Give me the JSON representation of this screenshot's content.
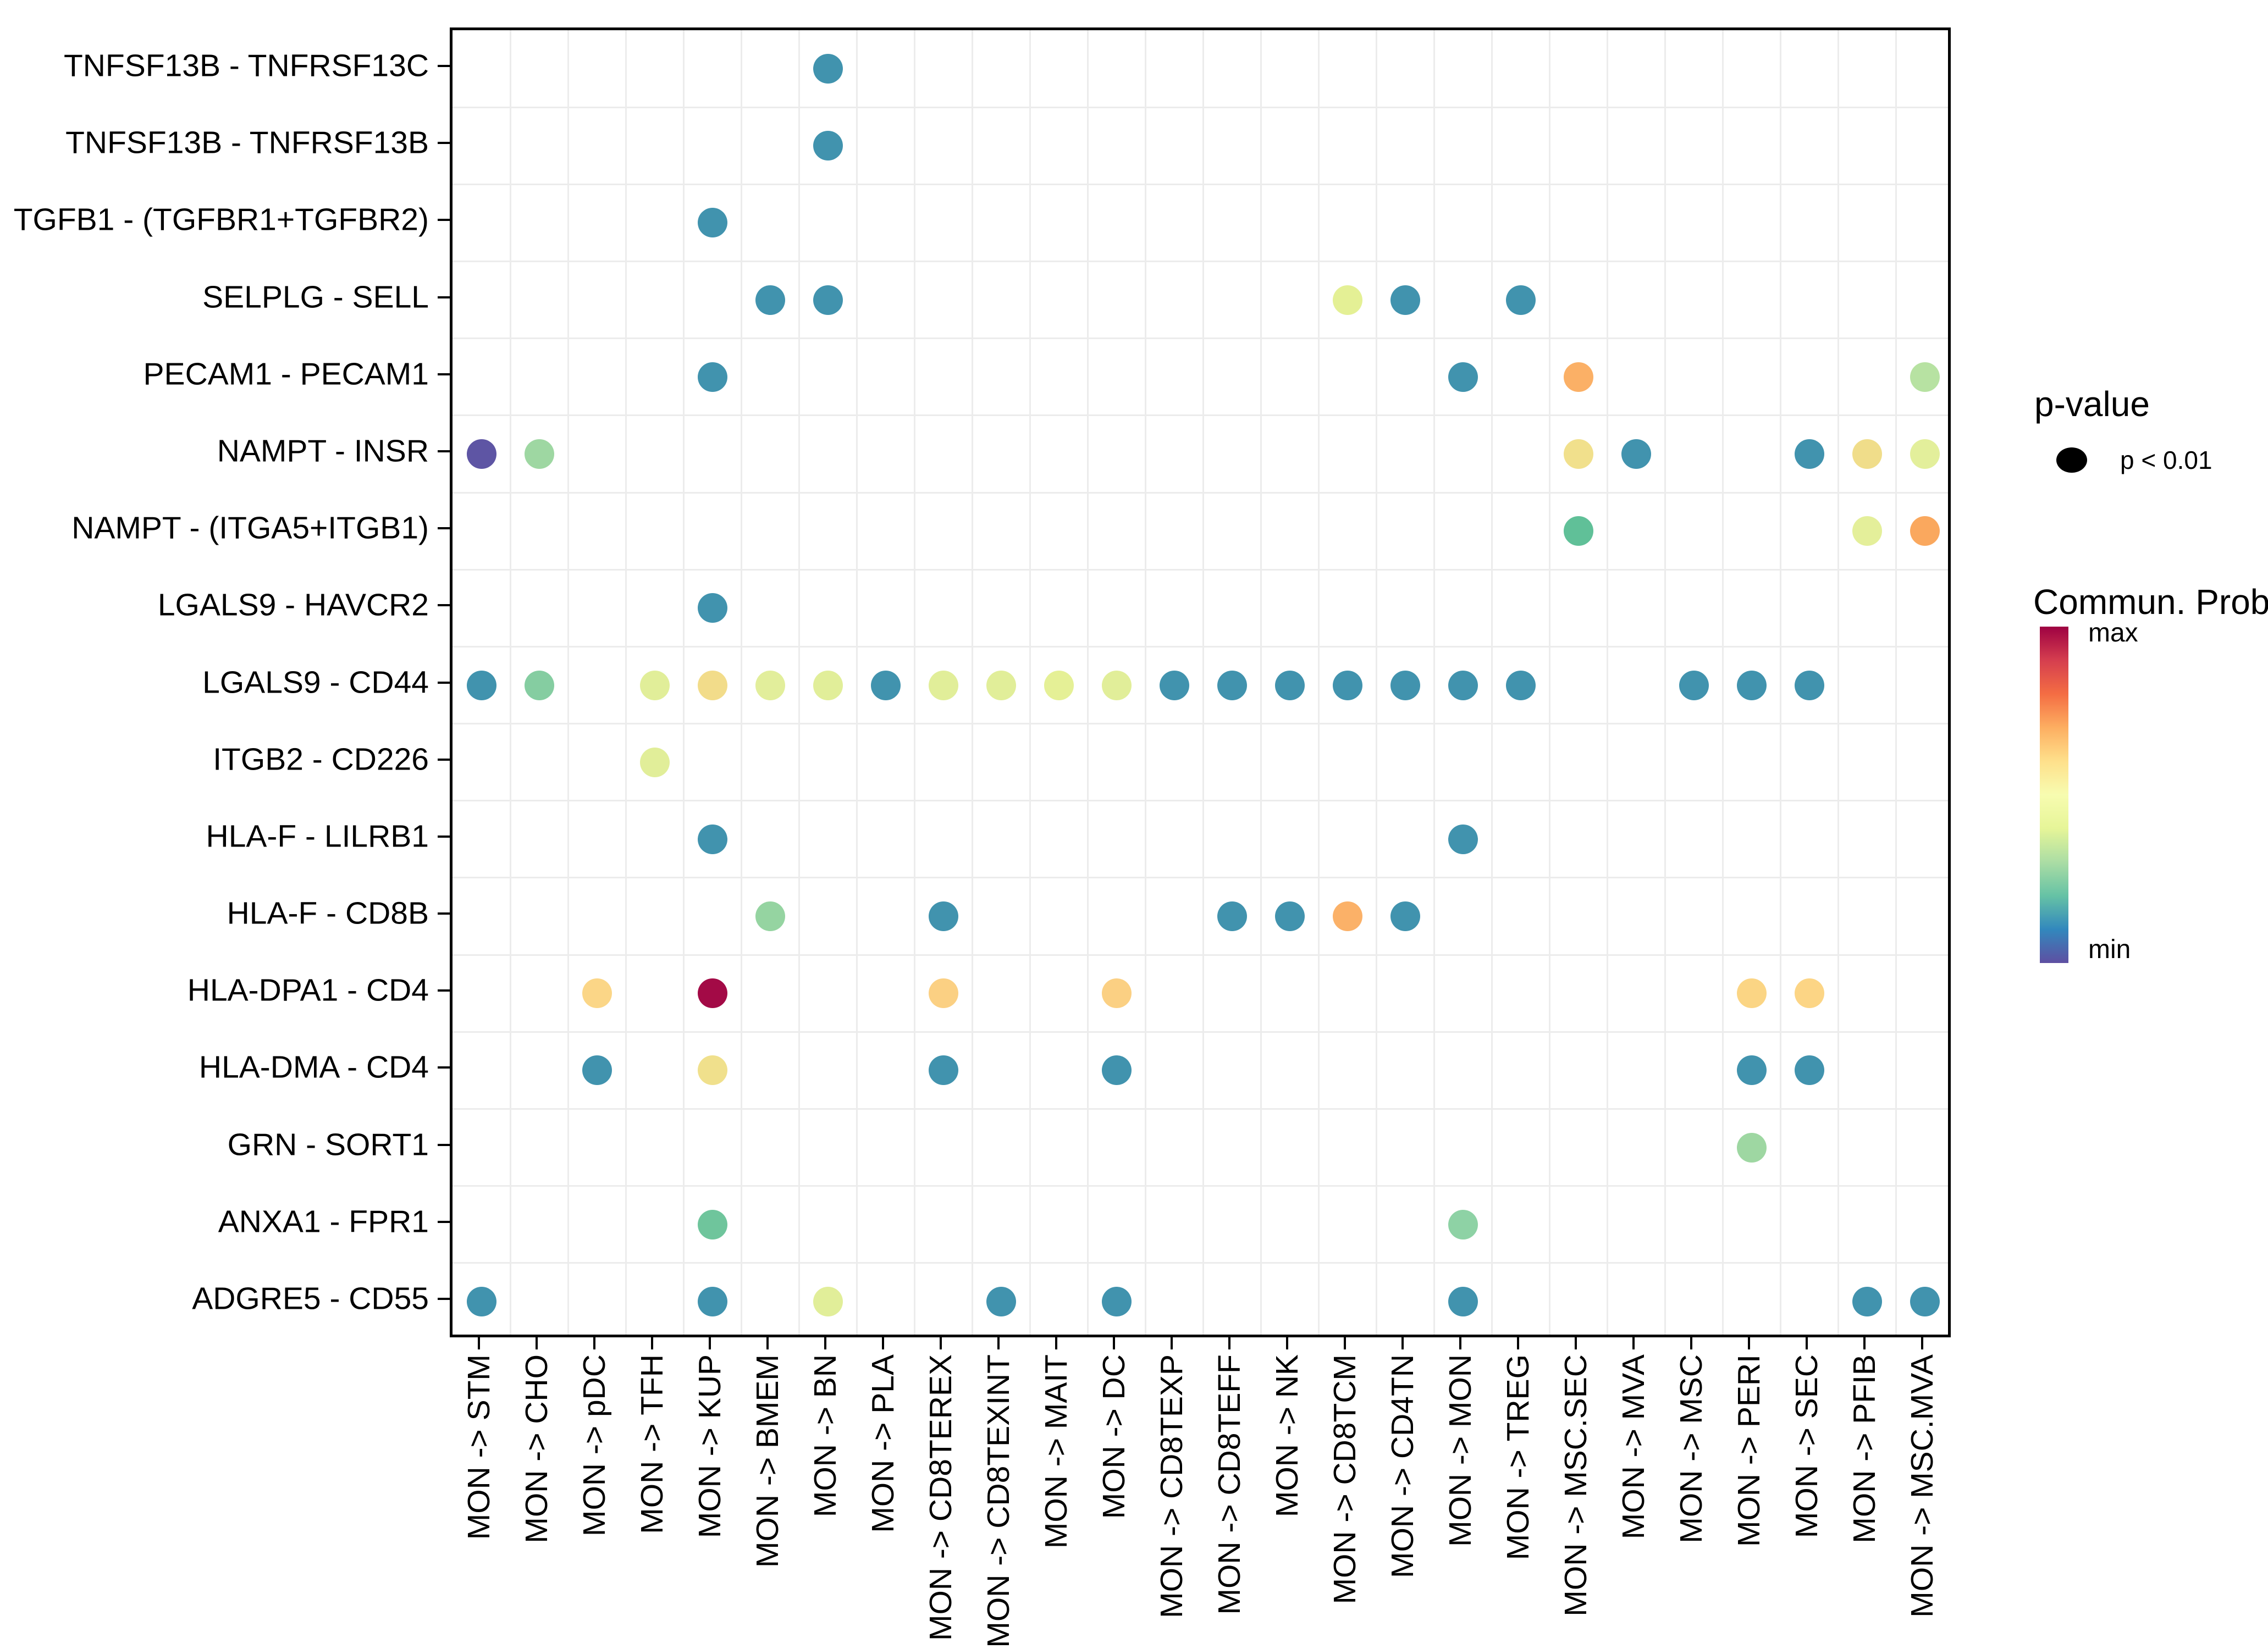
{
  "chart_data": {
    "type": "scatter",
    "subtype": "dot-matrix-cellchat",
    "title": "",
    "x_categories": [
      "MON -> STM",
      "MON -> CHO",
      "MON -> pDC",
      "MON -> TFH",
      "MON -> KUP",
      "MON -> BMEM",
      "MON -> BN",
      "MON -> PLA",
      "MON -> CD8TEREX",
      "MON -> CD8TEXINT",
      "MON -> MAIT",
      "MON -> DC",
      "MON -> CD8TEXP",
      "MON -> CD8TEFF",
      "MON -> NK",
      "MON -> CD8TCM",
      "MON -> CD4TN",
      "MON -> MON",
      "MON -> TREG",
      "MON -> MSC.SEC",
      "MON -> MVA",
      "MON -> MSC",
      "MON -> PERI",
      "MON -> SEC",
      "MON -> PFIB",
      "MON -> MSC.MVA"
    ],
    "y_categories": [
      "TNFSF13B - TNFRSF13C",
      "TNFSF13B - TNFRSF13B",
      "TGFB1 - (TGFBR1+TGFBR2)",
      "SELPLG - SELL",
      "PECAM1 - PECAM1",
      "NAMPT - INSR",
      "NAMPT - (ITGA5+ITGB1)",
      "LGALS9 - HAVCR2",
      "LGALS9 - CD44",
      "ITGB2 - CD226",
      "HLA-F - LILRB1",
      "HLA-F - CD8B",
      "HLA-DPA1 - CD4",
      "HLA-DMA - CD4",
      "GRN - SORT1",
      "ANXA1 - FPR1",
      "ADGRE5 - CD55"
    ],
    "grid": true,
    "legend_position": "right",
    "color_encoding": "dot color = communication probability (Spectral scale, min = blue/purple, max = dark red); all shown dots have p < 0.01",
    "dots": [
      {
        "row": 0,
        "col": 6,
        "color": "#4193ae"
      },
      {
        "row": 1,
        "col": 6,
        "color": "#4193ae"
      },
      {
        "row": 2,
        "col": 4,
        "color": "#4193ae"
      },
      {
        "row": 3,
        "col": 5,
        "color": "#4193ae"
      },
      {
        "row": 3,
        "col": 6,
        "color": "#4193ae"
      },
      {
        "row": 3,
        "col": 15,
        "color": "#e4f095"
      },
      {
        "row": 3,
        "col": 16,
        "color": "#4193ae"
      },
      {
        "row": 3,
        "col": 18,
        "color": "#4193ae"
      },
      {
        "row": 4,
        "col": 4,
        "color": "#4193ae"
      },
      {
        "row": 4,
        "col": 17,
        "color": "#4193ae"
      },
      {
        "row": 4,
        "col": 19,
        "color": "#fbb066"
      },
      {
        "row": 4,
        "col": 25,
        "color": "#b7e2a2"
      },
      {
        "row": 5,
        "col": 0,
        "color": "#5e55a4"
      },
      {
        "row": 5,
        "col": 1,
        "color": "#9ed7a2"
      },
      {
        "row": 5,
        "col": 19,
        "color": "#f1e08c"
      },
      {
        "row": 5,
        "col": 20,
        "color": "#4193ae"
      },
      {
        "row": 5,
        "col": 23,
        "color": "#4193ae"
      },
      {
        "row": 5,
        "col": 24,
        "color": "#f0dd8a"
      },
      {
        "row": 5,
        "col": 25,
        "color": "#e3ef9b"
      },
      {
        "row": 6,
        "col": 19,
        "color": "#60c098"
      },
      {
        "row": 6,
        "col": 24,
        "color": "#e4ef9a"
      },
      {
        "row": 6,
        "col": 25,
        "color": "#faa85e"
      },
      {
        "row": 7,
        "col": 4,
        "color": "#4193ae"
      },
      {
        "row": 8,
        "col": 0,
        "color": "#4193ae"
      },
      {
        "row": 8,
        "col": 1,
        "color": "#85cda1"
      },
      {
        "row": 8,
        "col": 3,
        "color": "#e1ee99"
      },
      {
        "row": 8,
        "col": 4,
        "color": "#f2dc8a"
      },
      {
        "row": 8,
        "col": 5,
        "color": "#e2ee9b"
      },
      {
        "row": 8,
        "col": 6,
        "color": "#e1ee99"
      },
      {
        "row": 8,
        "col": 7,
        "color": "#4193ae"
      },
      {
        "row": 8,
        "col": 8,
        "color": "#e1ee99"
      },
      {
        "row": 8,
        "col": 9,
        "color": "#e1ee99"
      },
      {
        "row": 8,
        "col": 10,
        "color": "#e5f096"
      },
      {
        "row": 8,
        "col": 11,
        "color": "#e1ee99"
      },
      {
        "row": 8,
        "col": 12,
        "color": "#4193ae"
      },
      {
        "row": 8,
        "col": 13,
        "color": "#4193ae"
      },
      {
        "row": 8,
        "col": 14,
        "color": "#4193ae"
      },
      {
        "row": 8,
        "col": 15,
        "color": "#4193ae"
      },
      {
        "row": 8,
        "col": 16,
        "color": "#4193ae"
      },
      {
        "row": 8,
        "col": 17,
        "color": "#4193ae"
      },
      {
        "row": 8,
        "col": 18,
        "color": "#4193ae"
      },
      {
        "row": 8,
        "col": 21,
        "color": "#4193ae"
      },
      {
        "row": 8,
        "col": 22,
        "color": "#4193ae"
      },
      {
        "row": 8,
        "col": 23,
        "color": "#4193ae"
      },
      {
        "row": 9,
        "col": 3,
        "color": "#e1ee99"
      },
      {
        "row": 10,
        "col": 4,
        "color": "#4193ae"
      },
      {
        "row": 10,
        "col": 17,
        "color": "#4193ae"
      },
      {
        "row": 11,
        "col": 5,
        "color": "#95d4a1"
      },
      {
        "row": 11,
        "col": 8,
        "color": "#4193ae"
      },
      {
        "row": 11,
        "col": 13,
        "color": "#4193ae"
      },
      {
        "row": 11,
        "col": 14,
        "color": "#4193ae"
      },
      {
        "row": 11,
        "col": 15,
        "color": "#fbb168"
      },
      {
        "row": 11,
        "col": 16,
        "color": "#4193ae"
      },
      {
        "row": 12,
        "col": 2,
        "color": "#fbd687"
      },
      {
        "row": 12,
        "col": 4,
        "color": "#a30a46"
      },
      {
        "row": 12,
        "col": 8,
        "color": "#fbd083"
      },
      {
        "row": 12,
        "col": 11,
        "color": "#fbd083"
      },
      {
        "row": 12,
        "col": 22,
        "color": "#fbd584"
      },
      {
        "row": 12,
        "col": 23,
        "color": "#fcd585"
      },
      {
        "row": 13,
        "col": 2,
        "color": "#4193ae"
      },
      {
        "row": 13,
        "col": 4,
        "color": "#f0e08c"
      },
      {
        "row": 13,
        "col": 8,
        "color": "#4193ae"
      },
      {
        "row": 13,
        "col": 11,
        "color": "#4193ae"
      },
      {
        "row": 13,
        "col": 22,
        "color": "#4193ae"
      },
      {
        "row": 13,
        "col": 23,
        "color": "#4193ae"
      },
      {
        "row": 14,
        "col": 22,
        "color": "#9ed7a2"
      },
      {
        "row": 15,
        "col": 4,
        "color": "#6fc59c"
      },
      {
        "row": 15,
        "col": 17,
        "color": "#8ed2a5"
      },
      {
        "row": 16,
        "col": 0,
        "color": "#4193ae"
      },
      {
        "row": 16,
        "col": 4,
        "color": "#4193ae"
      },
      {
        "row": 16,
        "col": 6,
        "color": "#e1ee99"
      },
      {
        "row": 16,
        "col": 9,
        "color": "#4193ae"
      },
      {
        "row": 16,
        "col": 11,
        "color": "#4193ae"
      },
      {
        "row": 16,
        "col": 17,
        "color": "#4193ae"
      },
      {
        "row": 16,
        "col": 24,
        "color": "#4193ae"
      },
      {
        "row": 16,
        "col": 25,
        "color": "#4193ae"
      }
    ]
  },
  "legend": {
    "p_value": {
      "title": "p-value",
      "entries": [
        {
          "label": "p < 0.01",
          "dot_color": "#000000"
        }
      ]
    },
    "commun_prob": {
      "title": "Commun. Prob.",
      "max_label": "max",
      "min_label": "min",
      "palette_top_to_bottom": [
        "#9e0142",
        "#d53e4f",
        "#f46d43",
        "#fdae61",
        "#fee08b",
        "#f7fcb0",
        "#e6f598",
        "#abdda4",
        "#66c2a5",
        "#3288bd",
        "#5e4fa2"
      ]
    }
  },
  "style_colors": {
    "panel_border": "#000000",
    "gridline": "#ececec",
    "axis_text": "#000000",
    "background": "#ffffff"
  }
}
